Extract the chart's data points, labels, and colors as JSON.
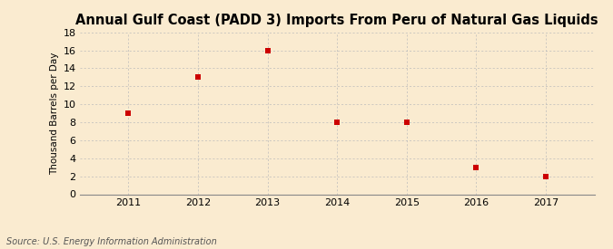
{
  "title": "Annual Gulf Coast (PADD 3) Imports From Peru of Natural Gas Liquids",
  "ylabel": "Thousand Barrels per Day",
  "source": "Source: U.S. Energy Information Administration",
  "years": [
    2011,
    2012,
    2013,
    2014,
    2015,
    2016,
    2017
  ],
  "values": [
    9,
    13,
    16,
    8,
    8,
    3,
    2
  ],
  "marker_color": "#cc0000",
  "marker_style": "s",
  "marker_size": 4,
  "background_color": "#faebd0",
  "grid_color": "#bbbbbb",
  "ylim": [
    0,
    18
  ],
  "yticks": [
    0,
    2,
    4,
    6,
    8,
    10,
    12,
    14,
    16,
    18
  ],
  "xlim": [
    2010.3,
    2017.7
  ],
  "xticks": [
    2011,
    2012,
    2013,
    2014,
    2015,
    2016,
    2017
  ],
  "title_fontsize": 10.5,
  "axis_label_fontsize": 7.5,
  "tick_fontsize": 8,
  "source_fontsize": 7
}
